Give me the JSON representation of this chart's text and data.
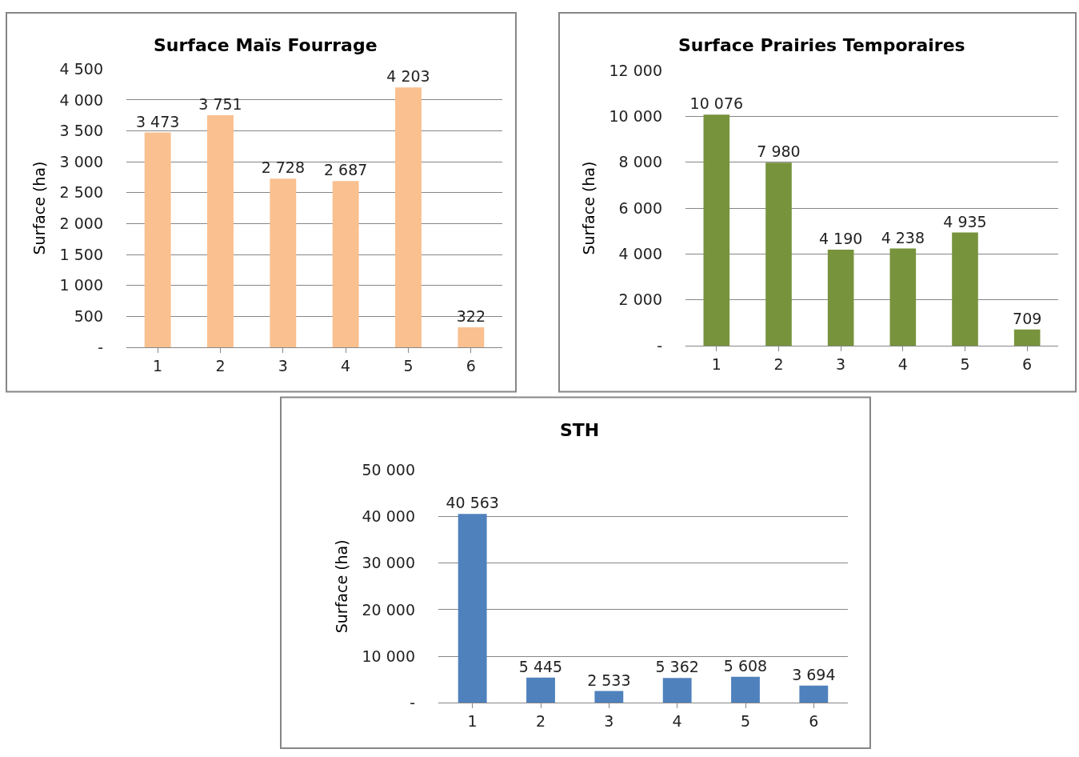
{
  "chart_data": [
    {
      "type": "bar",
      "title": "Surface Maïs Fourrage",
      "ylabel": "Surface (ha)",
      "categories": [
        "1",
        "2",
        "3",
        "4",
        "5",
        "6"
      ],
      "values": [
        3473,
        3751,
        2728,
        2687,
        4203,
        322
      ],
      "value_labels": [
        "3 473",
        "3 751",
        "2 728",
        "2 687",
        "4 203",
        "322"
      ],
      "color": "#fac090",
      "ylim": [
        0,
        4500
      ],
      "yticks": [
        {
          "value": 0,
          "label": "-"
        },
        {
          "value": 500,
          "label": "500"
        },
        {
          "value": 1000,
          "label": "1 000"
        },
        {
          "value": 1500,
          "label": "1 500"
        },
        {
          "value": 2000,
          "label": "2 000"
        },
        {
          "value": 2500,
          "label": "2 500"
        },
        {
          "value": 3000,
          "label": "3 000"
        },
        {
          "value": 3500,
          "label": "3 500"
        },
        {
          "value": 4000,
          "label": "4 000"
        },
        {
          "value": 4500,
          "label": "4 500"
        }
      ],
      "grid": "y"
    },
    {
      "type": "bar",
      "title": "Surface Prairies Temporaires",
      "ylabel": "Surface (ha)",
      "categories": [
        "1",
        "2",
        "3",
        "4",
        "5",
        "6"
      ],
      "values": [
        10076,
        7980,
        4190,
        4238,
        4935,
        709
      ],
      "value_labels": [
        "10 076",
        "7 980",
        "4 190",
        "4 238",
        "4 935",
        "709"
      ],
      "color": "#77933c",
      "ylim": [
        0,
        12000
      ],
      "yticks": [
        {
          "value": 0,
          "label": "-"
        },
        {
          "value": 2000,
          "label": "2 000"
        },
        {
          "value": 4000,
          "label": "4 000"
        },
        {
          "value": 6000,
          "label": "6 000"
        },
        {
          "value": 8000,
          "label": "8 000"
        },
        {
          "value": 10000,
          "label": "10 000"
        },
        {
          "value": 12000,
          "label": "12 000"
        }
      ],
      "grid": "y"
    },
    {
      "type": "bar",
      "title": "STH",
      "ylabel": "Surface (ha)",
      "categories": [
        "1",
        "2",
        "3",
        "4",
        "5",
        "6"
      ],
      "values": [
        40563,
        5445,
        2533,
        5362,
        5608,
        3694
      ],
      "value_labels": [
        "40 563",
        "5 445",
        "2 533",
        "5 362",
        "5 608",
        "3 694"
      ],
      "color": "#4f81bd",
      "ylim": [
        0,
        50000
      ],
      "yticks": [
        {
          "value": 0,
          "label": "-"
        },
        {
          "value": 10000,
          "label": "10 000"
        },
        {
          "value": 20000,
          "label": "20 000"
        },
        {
          "value": 30000,
          "label": "30 000"
        },
        {
          "value": 40000,
          "label": "40 000"
        },
        {
          "value": 50000,
          "label": "50 000"
        }
      ],
      "grid": "y"
    }
  ]
}
